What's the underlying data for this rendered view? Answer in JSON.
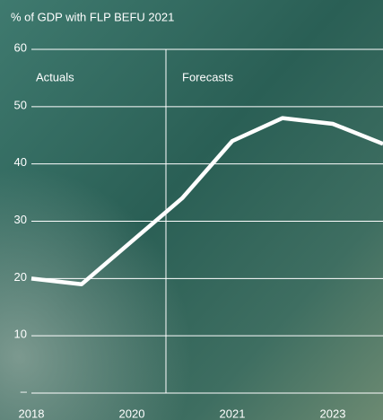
{
  "chart_data": {
    "type": "line",
    "title": "% of GDP with FLP BEFU 2021",
    "categories": [
      "2018",
      null,
      "2020",
      null,
      "2021",
      null,
      "2023",
      null
    ],
    "series": [
      {
        "color": "#ffffff",
        "values": [
          20,
          19,
          26.5,
          34,
          44,
          48,
          47,
          43.5
        ]
      }
    ],
    "ylim": [
      0,
      60
    ],
    "yticks": [
      {
        "value": 0,
        "label": "–"
      },
      10,
      20,
      30,
      40,
      50,
      60
    ],
    "grid": true,
    "annotations": [
      "Actuals",
      "Forecasts"
    ]
  }
}
